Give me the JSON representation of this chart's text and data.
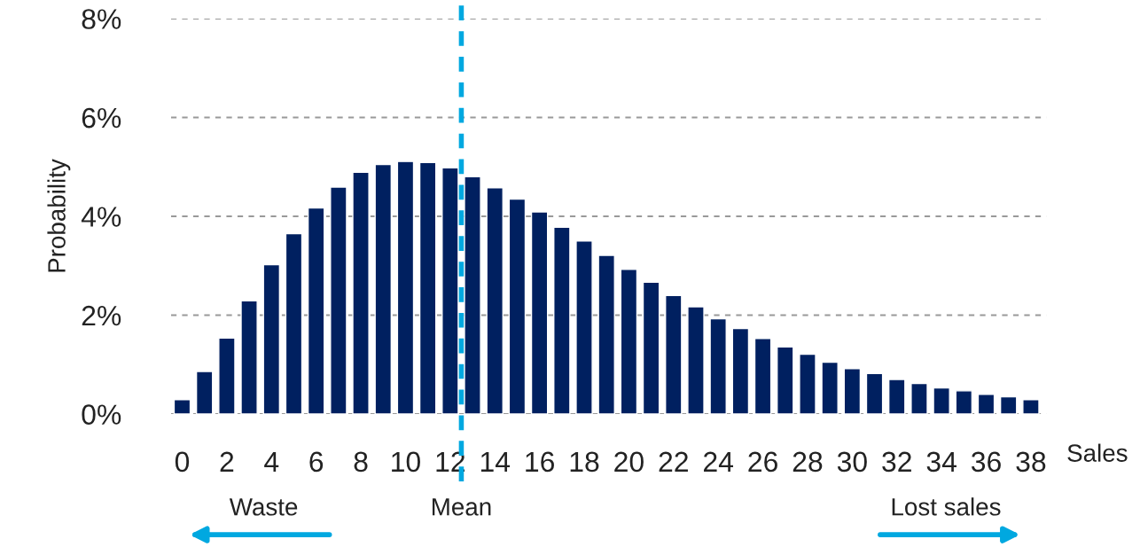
{
  "chart_data": {
    "type": "bar",
    "xlabel": "Sales",
    "ylabel": "Probability",
    "x": [
      0,
      1,
      2,
      3,
      4,
      5,
      6,
      7,
      8,
      9,
      10,
      11,
      12,
      13,
      14,
      15,
      16,
      17,
      18,
      19,
      20,
      21,
      22,
      23,
      24,
      25,
      26,
      27,
      28,
      29,
      30,
      31,
      32,
      33,
      34,
      35,
      36,
      37,
      38
    ],
    "values": [
      0.29,
      0.86,
      1.54,
      2.29,
      3.02,
      3.65,
      4.17,
      4.59,
      4.89,
      5.05,
      5.11,
      5.09,
      4.98,
      4.8,
      4.58,
      4.35,
      4.09,
      3.78,
      3.5,
      3.21,
      2.93,
      2.67,
      2.4,
      2.17,
      1.93,
      1.73,
      1.53,
      1.36,
      1.21,
      1.05,
      0.92,
      0.82,
      0.7,
      0.62,
      0.53,
      0.47,
      0.4,
      0.35,
      0.29
    ],
    "color": "#002060",
    "xlim": [
      -0.5,
      38.7
    ],
    "xticks": [
      0,
      2,
      4,
      6,
      8,
      10,
      12,
      14,
      16,
      18,
      20,
      22,
      24,
      26,
      28,
      30,
      32,
      34,
      36,
      38
    ],
    "ylim": [
      0,
      8
    ],
    "yticks": [
      {
        "value": 0,
        "label": "0%"
      },
      {
        "value": 2,
        "label": "2%"
      },
      {
        "value": 4,
        "label": "4%"
      },
      {
        "value": 6,
        "label": "6%"
      },
      {
        "value": 8,
        "label": "8%"
      }
    ],
    "grid": "y",
    "ref_lines": [
      {
        "axis": "x",
        "value": 12.5,
        "label": "Mean",
        "color": "#00a8e0",
        "line_style": "dashed"
      }
    ],
    "annotations": [
      "Waste",
      "Lost sales"
    ]
  }
}
